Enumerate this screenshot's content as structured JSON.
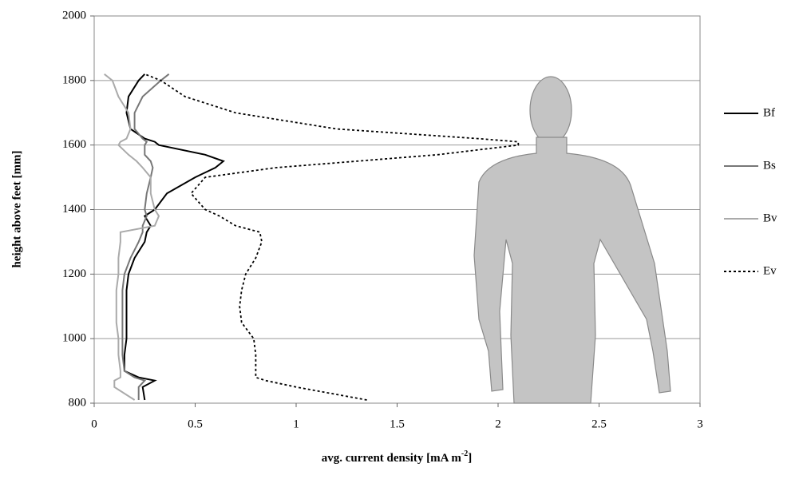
{
  "chart_data": {
    "type": "line",
    "orientation": "horizontal",
    "x_label": "avg. current density [mA  m",
    "x_label_superscript": "-2",
    "x_label_end": "]",
    "y_label": "height above feet [mm]",
    "xlim": [
      0,
      3
    ],
    "xticks": [
      0,
      0.5,
      1,
      1.5,
      2,
      2.5,
      3
    ],
    "ylim": [
      800,
      2000
    ],
    "yticks": [
      800,
      1000,
      1200,
      1400,
      1600,
      1800,
      2000
    ],
    "grid": true,
    "legend": "right",
    "y": [
      810,
      850,
      870,
      880,
      900,
      950,
      1000,
      1050,
      1100,
      1150,
      1200,
      1250,
      1300,
      1330,
      1350,
      1380,
      1400,
      1450,
      1500,
      1530,
      1550,
      1570,
      1600,
      1610,
      1620,
      1650,
      1700,
      1750,
      1800,
      1820
    ],
    "series": [
      {
        "name": "Bf",
        "color": "#000000",
        "style": "solid",
        "values": [
          0.25,
          0.24,
          0.3,
          0.22,
          0.15,
          0.15,
          0.16,
          0.16,
          0.16,
          0.16,
          0.17,
          0.2,
          0.25,
          0.26,
          0.28,
          0.25,
          0.3,
          0.36,
          0.5,
          0.6,
          0.64,
          0.55,
          0.32,
          0.3,
          0.25,
          0.18,
          0.16,
          0.17,
          0.22,
          0.25
        ]
      },
      {
        "name": "Bs",
        "color": "#777777",
        "style": "solid",
        "values": [
          0.22,
          0.22,
          0.25,
          0.2,
          0.15,
          0.14,
          0.14,
          0.14,
          0.14,
          0.14,
          0.15,
          0.18,
          0.22,
          0.24,
          0.24,
          0.26,
          0.25,
          0.26,
          0.28,
          0.29,
          0.28,
          0.25,
          0.25,
          0.26,
          0.24,
          0.2,
          0.2,
          0.24,
          0.33,
          0.37
        ]
      },
      {
        "name": "Bv",
        "color": "#aaaaaa",
        "style": "solid",
        "values": [
          0.2,
          0.1,
          0.1,
          0.13,
          0.13,
          0.12,
          0.12,
          0.11,
          0.11,
          0.11,
          0.12,
          0.12,
          0.13,
          0.13,
          0.3,
          0.32,
          0.3,
          0.28,
          0.28,
          0.24,
          0.21,
          0.17,
          0.12,
          0.13,
          0.16,
          0.18,
          0.17,
          0.12,
          0.09,
          0.05
        ]
      },
      {
        "name": "Ev",
        "color": "#000000",
        "style": "dotted",
        "values": [
          1.35,
          1.0,
          0.85,
          0.8,
          0.8,
          0.8,
          0.79,
          0.73,
          0.72,
          0.73,
          0.75,
          0.8,
          0.83,
          0.82,
          0.7,
          0.62,
          0.55,
          0.48,
          0.55,
          0.9,
          1.3,
          1.7,
          2.1,
          2.1,
          1.9,
          1.2,
          0.7,
          0.45,
          0.33,
          0.25
        ]
      }
    ]
  }
}
